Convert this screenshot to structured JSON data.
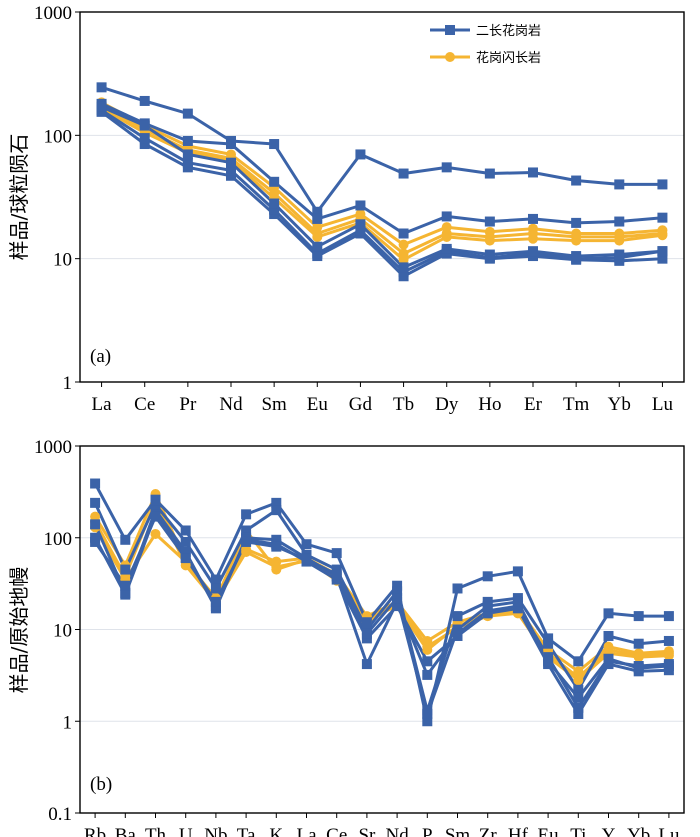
{
  "colors": {
    "granite": "#3b63a8",
    "granodiorite": "#f5b532"
  },
  "legend": [
    {
      "label": "二长花岗岩",
      "series_color": "granite",
      "marker": "square"
    },
    {
      "label": "花岗闪长岩",
      "series_color": "granodiorite",
      "marker": "circle"
    }
  ],
  "chart_data": [
    {
      "type": "line",
      "panel_label": "(a)",
      "ylabel": "样品/球粒陨石",
      "yscale": "log",
      "ylim": [
        1,
        1000
      ],
      "yticks": [
        "1",
        "10",
        "100",
        "1000"
      ],
      "categories": [
        "La",
        "Ce",
        "Pr",
        "Nd",
        "Sm",
        "Eu",
        "Gd",
        "Tb",
        "Dy",
        "Ho",
        "Er",
        "Tm",
        "Yb",
        "Lu"
      ],
      "series": [
        {
          "name": "二长花岗岩-1",
          "group": "granite",
          "values": [
            245,
            190,
            150,
            90,
            85,
            24,
            70,
            49,
            55,
            49,
            50,
            43,
            40,
            40
          ]
        },
        {
          "name": "二长花岗岩-2",
          "group": "granite",
          "values": [
            180,
            125,
            90,
            85,
            42,
            21,
            27,
            16,
            22,
            20,
            21,
            19.5,
            20,
            21.5
          ]
        },
        {
          "name": "二长花岗岩-3",
          "group": "granite",
          "values": [
            155,
            85,
            55,
            47,
            23,
            10.5,
            16,
            7.2,
            11,
            10,
            10.5,
            9.8,
            9.6,
            10
          ]
        },
        {
          "name": "二长花岗岩-4",
          "group": "granite",
          "values": [
            160,
            95,
            60,
            52,
            25,
            11,
            17,
            7.8,
            11.5,
            10.2,
            11,
            10,
            10.2,
            11.5
          ]
        },
        {
          "name": "二长花岗岩-5",
          "group": "granite",
          "values": [
            170,
            120,
            70,
            60,
            28,
            12.5,
            19,
            8.5,
            12,
            10.8,
            11.5,
            10.5,
            10.8,
            11.5
          ]
        },
        {
          "name": "花岗闪长岩-1",
          "group": "granodiorite",
          "values": [
            185,
            120,
            82,
            70,
            38,
            18,
            23,
            13,
            18,
            16.5,
            17.5,
            16,
            16,
            17
          ]
        },
        {
          "name": "花岗闪长岩-2",
          "group": "granodiorite",
          "values": [
            175,
            112,
            76,
            65,
            34,
            16,
            21,
            11,
            16,
            15,
            16,
            15,
            15,
            16
          ]
        },
        {
          "name": "花岗闪长岩-3",
          "group": "granodiorite",
          "values": [
            165,
            105,
            72,
            62,
            31,
            15,
            19.5,
            9.8,
            15,
            14,
            14.5,
            14,
            14,
            15.5
          ]
        }
      ]
    },
    {
      "type": "line",
      "panel_label": "(b)",
      "ylabel": "样品/原始地幔",
      "yscale": "log",
      "ylim": [
        0.1,
        1000
      ],
      "yticks": [
        "0.1",
        "1",
        "10",
        "100",
        "1000"
      ],
      "categories": [
        "Rb",
        "Ba",
        "Th",
        "U",
        "Nb",
        "Ta",
        "K",
        "La",
        "Ce",
        "Sr",
        "Nd",
        "P",
        "Sm",
        "Zr",
        "Hf",
        "Eu",
        "Ti",
        "Y",
        "Yb",
        "Lu"
      ],
      "series": [
        {
          "name": "二长花岗岩-1",
          "group": "granite",
          "values": [
            390,
            95,
            260,
            120,
            35,
            180,
            240,
            85,
            68,
            12,
            30,
            1.0,
            28,
            38,
            43,
            8,
            4.5,
            15,
            14,
            14
          ]
        },
        {
          "name": "二长花岗岩-2",
          "group": "granite",
          "values": [
            240,
            45,
            230,
            90,
            28,
            120,
            200,
            65,
            45,
            10,
            26,
            1.3,
            14,
            20,
            22,
            7,
            2.2,
            8.5,
            7,
            7.5
          ]
        },
        {
          "name": "二长花岗岩-3",
          "group": "granite",
          "values": [
            140,
            25,
            200,
            70,
            17,
            100,
            95,
            60,
            38,
            4.2,
            20,
            3.2,
            9,
            16,
            18,
            5,
            1.4,
            4.5,
            4,
            4.2
          ]
        },
        {
          "name": "二长花岗岩-4",
          "group": "granite",
          "values": [
            100,
            24,
            180,
            65,
            18,
            95,
            85,
            55,
            35,
            8,
            18,
            4.5,
            8.5,
            15,
            17,
            4.2,
            1.2,
            4.2,
            3.5,
            3.6
          ]
        },
        {
          "name": "二长花岗岩-5",
          "group": "granite",
          "values": [
            90,
            30,
            170,
            60,
            20,
            90,
            80,
            58,
            40,
            9,
            22,
            1.2,
            10,
            18,
            20,
            4.5,
            1.8,
            4.8,
            3.8,
            4
          ]
        },
        {
          "name": "花岗闪长岩-1",
          "group": "granodiorite",
          "values": [
            170,
            50,
            300,
            55,
            22,
            75,
            55,
            60,
            40,
            14,
            20,
            7.5,
            12,
            15,
            17,
            6,
            3.5,
            6.5,
            5.5,
            5.8
          ]
        },
        {
          "name": "花岗闪长岩-2",
          "group": "granodiorite",
          "values": [
            150,
            38,
            250,
            50,
            20,
            70,
            48,
            56,
            36,
            13,
            18,
            6,
            11,
            14,
            16,
            5.5,
            3,
            6,
            5.2,
            5.5
          ]
        },
        {
          "name": "花岗闪长岩-3",
          "group": "granodiorite",
          "values": [
            130,
            35,
            110,
            55,
            21,
            120,
            45,
            58,
            34,
            12,
            19,
            6.5,
            10.5,
            14,
            15,
            5,
            2.8,
            5.5,
            5,
            5.2
          ]
        }
      ]
    }
  ]
}
